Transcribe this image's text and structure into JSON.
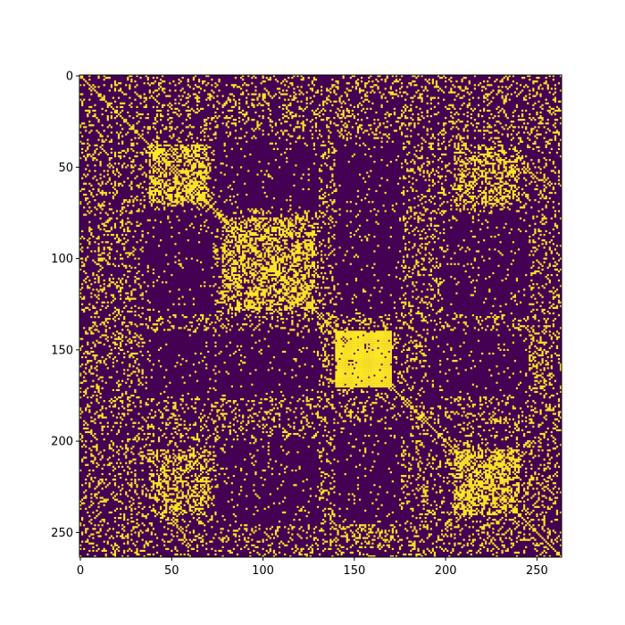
{
  "chart_data": {
    "type": "heatmap",
    "title": "",
    "xlabel": "",
    "ylabel": "",
    "size": 264,
    "xlim": [
      -0.5,
      263.5
    ],
    "ylim": [
      263.5,
      -0.5
    ],
    "xticks": [
      0,
      50,
      100,
      150,
      200,
      250
    ],
    "yticks": [
      0,
      50,
      100,
      150,
      200,
      250
    ],
    "value_colors": {
      "0": "#440154",
      "1": "#fde725"
    },
    "binary_matrix": true,
    "dense_blocks": [
      {
        "rows": [
          38,
          70
        ],
        "cols": [
          38,
          70
        ],
        "density": 0.55
      },
      {
        "rows": [
          78,
          128
        ],
        "cols": [
          78,
          128
        ],
        "density": 0.5
      },
      {
        "rows": [
          140,
          170
        ],
        "cols": [
          140,
          170
        ],
        "density": 0.92
      },
      {
        "rows": [
          205,
          240
        ],
        "cols": [
          205,
          240
        ],
        "density": 0.55
      },
      {
        "rows": [
          38,
          70
        ],
        "cols": [
          205,
          240
        ],
        "density": 0.4
      },
      {
        "rows": [
          205,
          240
        ],
        "cols": [
          38,
          70
        ],
        "density": 0.4
      }
    ],
    "sparse_blocks": [
      {
        "rows": [
          75,
          130
        ],
        "cols": [
          35,
          72
        ],
        "density": 0.04
      },
      {
        "rows": [
          35,
          72
        ],
        "cols": [
          75,
          130
        ],
        "density": 0.04
      },
      {
        "rows": [
          140,
          175
        ],
        "cols": [
          35,
          72
        ],
        "density": 0.04
      },
      {
        "rows": [
          35,
          72
        ],
        "cols": [
          140,
          175
        ],
        "density": 0.04
      },
      {
        "rows": [
          140,
          175
        ],
        "cols": [
          75,
          130
        ],
        "density": 0.04
      },
      {
        "rows": [
          75,
          130
        ],
        "cols": [
          140,
          175
        ],
        "density": 0.04
      },
      {
        "rows": [
          140,
          175
        ],
        "cols": [
          190,
          245
        ],
        "density": 0.04
      },
      {
        "rows": [
          190,
          245
        ],
        "cols": [
          140,
          175
        ],
        "density": 0.04
      },
      {
        "rows": [
          75,
          130
        ],
        "cols": [
          200,
          245
        ],
        "density": 0.04
      },
      {
        "rows": [
          200,
          245
        ],
        "cols": [
          75,
          130
        ],
        "density": 0.04
      },
      {
        "rows": [
          140,
          175
        ],
        "cols": [
          245,
          258
        ],
        "density": 0.3
      },
      {
        "rows": [
          245,
          258
        ],
        "cols": [
          140,
          175
        ],
        "density": 0.3
      }
    ],
    "background_density": 0.18,
    "diagonal": 1
  }
}
